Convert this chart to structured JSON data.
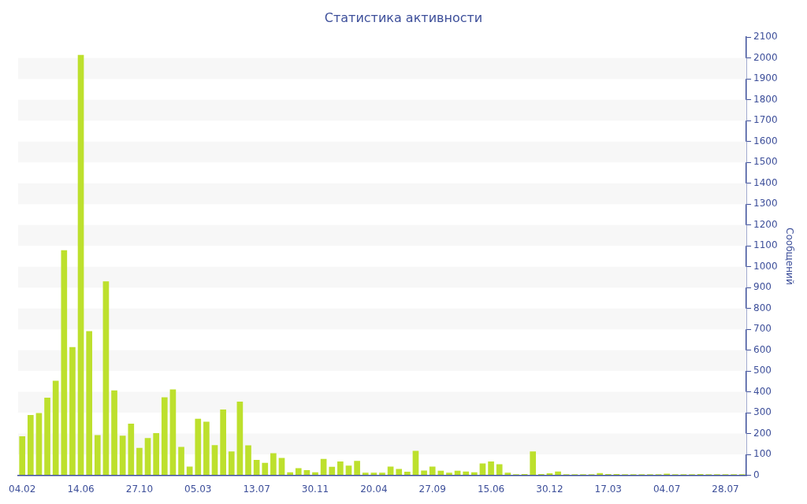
{
  "chart_data": {
    "type": "bar",
    "title": "Статистика активности",
    "ylabel": "Сообщений",
    "categories": [
      "04.02",
      null,
      null,
      null,
      null,
      null,
      null,
      "14.06",
      null,
      null,
      null,
      null,
      null,
      null,
      "27.10",
      null,
      null,
      null,
      null,
      null,
      null,
      "05.03",
      null,
      null,
      null,
      null,
      null,
      null,
      "13.07",
      null,
      null,
      null,
      null,
      null,
      null,
      "30.11",
      null,
      null,
      null,
      null,
      null,
      null,
      "20.04",
      null,
      null,
      null,
      null,
      null,
      null,
      "27.09",
      null,
      null,
      null,
      null,
      null,
      null,
      "15.06",
      null,
      null,
      null,
      null,
      null,
      null,
      "30.12",
      null,
      null,
      null,
      null,
      null,
      null,
      "17.03",
      null,
      null,
      null,
      null,
      null,
      null,
      "04.07",
      null,
      null,
      null,
      null,
      null,
      null,
      "28.07",
      null,
      null
    ],
    "values": [
      187,
      289,
      299,
      372,
      453,
      1079,
      615,
      2015,
      691,
      193,
      930,
      407,
      190,
      248,
      132,
      179,
      202,
      374,
      412,
      136,
      42,
      271,
      257,
      145,
      316,
      115,
      353,
      144,
      74,
      60,
      106,
      83,
      15,
      34,
      25,
      15,
      79,
      41,
      66,
      47,
      69,
      13,
      13,
      13,
      42,
      31,
      17,
      117,
      23,
      42,
      22,
      13,
      22,
      18,
      15,
      57,
      66,
      53,
      13,
      5,
      6,
      115,
      6,
      10,
      18,
      5,
      5,
      5,
      5,
      11,
      6,
      6,
      5,
      5,
      5,
      5,
      5,
      8,
      5,
      5,
      5,
      6,
      5,
      5,
      5,
      5,
      5
    ],
    "color": "#bde02d",
    "ylim": [
      0,
      2100
    ],
    "yticks": [
      0,
      100,
      200,
      300,
      400,
      500,
      600,
      700,
      800,
      900,
      1000,
      1100,
      1200,
      1300,
      1400,
      1500,
      1600,
      1700,
      1800,
      1900,
      2000,
      2100
    ],
    "legend": false
  }
}
